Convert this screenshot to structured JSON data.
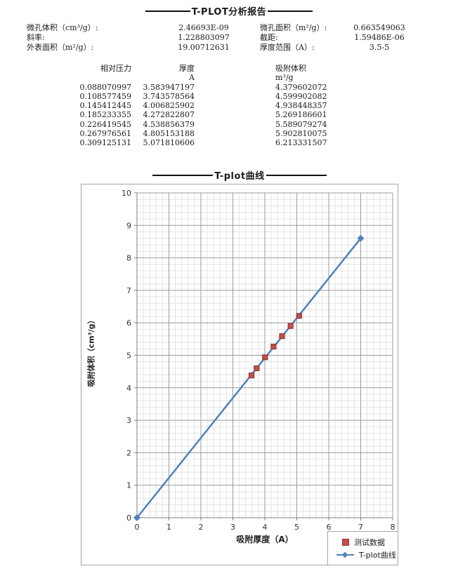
{
  "report": {
    "title": "T-PLOT分析报告",
    "params_left": [
      {
        "label": "微孔体积（cm³/g）:",
        "value": "2.46693E-09"
      },
      {
        "label": "斜率:",
        "value": "1.228803097"
      },
      {
        "label": "外表面积（m²/g）:",
        "value": "19.00712631"
      }
    ],
    "params_right": [
      {
        "label": "微孔面积（m²/g）:",
        "value": "0.663549063"
      },
      {
        "label": "截距:",
        "value": "1.59486E-06"
      },
      {
        "label": "厚度范围（A）:",
        "value": "3.5-5"
      }
    ]
  },
  "table": {
    "col_headers": [
      "相对压力",
      "厚度",
      "吸附体积"
    ],
    "col_units": [
      "",
      "A",
      "m³/g"
    ],
    "rows": [
      [
        "0.088070997",
        "3.583947197",
        "4.379602072"
      ],
      [
        "0.108577459",
        "3.743578564",
        "4.599902082"
      ],
      [
        "0.145412445",
        "4.006825902",
        "4.938448357"
      ],
      [
        "0.185233355",
        "4.272822807",
        "5.269186601"
      ],
      [
        "0.226419545",
        "4.538856379",
        "5.589079274"
      ],
      [
        "0.267976561",
        "4.805153188",
        "5.902810075"
      ],
      [
        "0.309125131",
        "5.071810606",
        "6.213331507"
      ]
    ]
  },
  "chart_data": {
    "type": "line",
    "title": "T-plot曲线",
    "xlabel": "吸附厚度（A）",
    "ylabel": "吸附体积（cm³/g）",
    "xlim": [
      0,
      8
    ],
    "ylim": [
      0,
      10
    ],
    "x_ticks": [
      0,
      1,
      2,
      3,
      4,
      5,
      6,
      7,
      8
    ],
    "y_ticks": [
      0,
      1,
      2,
      3,
      4,
      5,
      6,
      7,
      8,
      9,
      10
    ],
    "minor_grid_step": 0.2,
    "grid": true,
    "legend_position": "bottom-right",
    "colors": {
      "line": "#4F81BD",
      "marker_fill": "#C0504D",
      "marker_border": "#943634",
      "grid_major": "#9b9b9b",
      "grid_minor": "#e4e4e4",
      "axis": "#808080",
      "tick_text": "#333333"
    },
    "series": [
      {
        "name": "测试数据",
        "type": "scatter",
        "marker": "square",
        "x": [
          3.583947197,
          3.743578564,
          4.006825902,
          4.272822807,
          4.538856379,
          4.805153188,
          5.071810606
        ],
        "y": [
          4.379602072,
          4.599902082,
          4.938448357,
          5.269186601,
          5.589079274,
          5.902810075,
          6.213331507
        ]
      },
      {
        "name": "T-plot曲线",
        "type": "line",
        "marker": "diamond",
        "x": [
          0,
          7
        ],
        "y": [
          0,
          8.602
        ]
      }
    ]
  }
}
